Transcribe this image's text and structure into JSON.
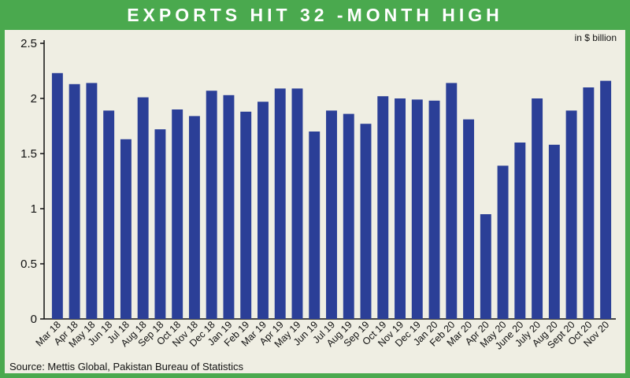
{
  "chart_data": {
    "type": "bar",
    "title": "EXPORTS HIT 32 -MONTH HIGH",
    "unit_note": "in $ billion",
    "source": "Source: Mettis Global, Pakistan Bureau of Statistics",
    "ylim": [
      0,
      2.5
    ],
    "yticks": [
      "0",
      "0.5",
      "1",
      "1.5",
      "2",
      "2.5"
    ],
    "grid": false,
    "bar_color": "#2b3f97",
    "categories": [
      "Mar 18",
      "Apr 18",
      "May 18",
      "Jun 18",
      "Jul 18",
      "Aug 18",
      "Sep 18",
      "Oct 18",
      "Nov 18",
      "Dec 18",
      "Jan 19",
      "Feb 19",
      "Mar 19",
      "Apr 19",
      "May 19",
      "Jun 19",
      "Jul 19",
      "Aug 19",
      "Sep 19",
      "Oct 19",
      "Nov 19",
      "Dec 19",
      "Jan 20",
      "Feb 20",
      "Mar 20",
      "Apr 20",
      "May 20",
      "June 20",
      "July 20",
      "Aug 20",
      "Sept 20",
      "Oct 20",
      "Nov 20"
    ],
    "values": [
      2.23,
      2.13,
      2.14,
      1.89,
      1.63,
      2.01,
      1.72,
      1.9,
      1.84,
      2.07,
      2.03,
      1.88,
      1.97,
      2.09,
      2.09,
      1.7,
      1.89,
      1.86,
      1.77,
      2.02,
      2.0,
      1.99,
      1.98,
      2.14,
      1.81,
      0.95,
      1.39,
      1.6,
      2.0,
      1.58,
      1.89,
      2.1,
      2.16
    ]
  }
}
